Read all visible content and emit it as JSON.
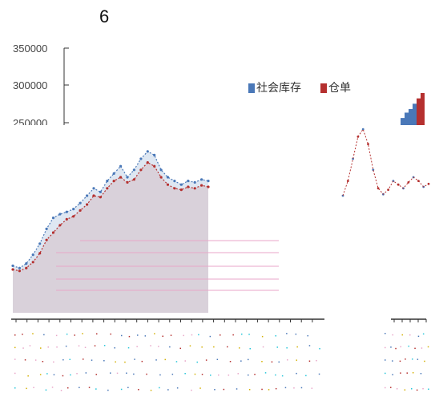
{
  "page": {
    "number": "6"
  },
  "colors": {
    "series_blue": "#4a78b8",
    "series_red": "#b5302f",
    "axis": "#333333",
    "tick_text": "#444444",
    "noise_pink": "#e8a6c8",
    "noise_cyan": "#26c6da"
  },
  "chart_data": {
    "type": "area",
    "title": "",
    "xlabel": "",
    "ylabel": "",
    "legend": {
      "placement": "top-right"
    },
    "grid": false,
    "yticks": [
      "350000",
      "300000",
      "250000"
    ],
    "series": [
      {
        "name": "社会库存",
        "color_key": "series_blue",
        "x": [
          0,
          1,
          2,
          3,
          4,
          5,
          6,
          7,
          8,
          9,
          10,
          11,
          12,
          13,
          14,
          15,
          16,
          17,
          18,
          19,
          20,
          21,
          22,
          23,
          24,
          25,
          26,
          27,
          28,
          29
        ],
        "values": [
          55000,
          52000,
          58000,
          70000,
          85000,
          105000,
          120000,
          125000,
          128000,
          132000,
          140000,
          150000,
          160000,
          155000,
          170000,
          180000,
          190000,
          175000,
          185000,
          200000,
          210000,
          205000,
          185000,
          175000,
          170000,
          165000,
          170000,
          168000,
          172000,
          170000
        ]
      },
      {
        "name": "仓单",
        "color_key": "series_red",
        "x": [
          0,
          1,
          2,
          3,
          4,
          5,
          6,
          7,
          8,
          9,
          10,
          11,
          12,
          13,
          14,
          15,
          16,
          17,
          18,
          19,
          20,
          21,
          22,
          23,
          24,
          25,
          26,
          27,
          28,
          29
        ],
        "values": [
          50000,
          48000,
          52000,
          60000,
          72000,
          90000,
          100000,
          110000,
          118000,
          122000,
          130000,
          138000,
          150000,
          148000,
          160000,
          170000,
          175000,
          168000,
          172000,
          185000,
          195000,
          190000,
          175000,
          165000,
          160000,
          158000,
          162000,
          160000,
          164000,
          162000
        ]
      }
    ],
    "right_panel_series": [
      {
        "name": "",
        "values": [
          60000,
          80000,
          110000,
          140000,
          150000,
          130000,
          95000,
          70000,
          62000,
          68000,
          80000,
          75000,
          70000,
          78000,
          85000,
          80000,
          72000,
          76000
        ]
      }
    ],
    "inset_bar_values": [
      20,
      35,
      45,
      60,
      75,
      90
    ]
  },
  "legend": {
    "items": [
      {
        "label": "社会库存",
        "color_key": "series_blue"
      },
      {
        "label": "仓单",
        "color_key": "series_red"
      }
    ]
  }
}
